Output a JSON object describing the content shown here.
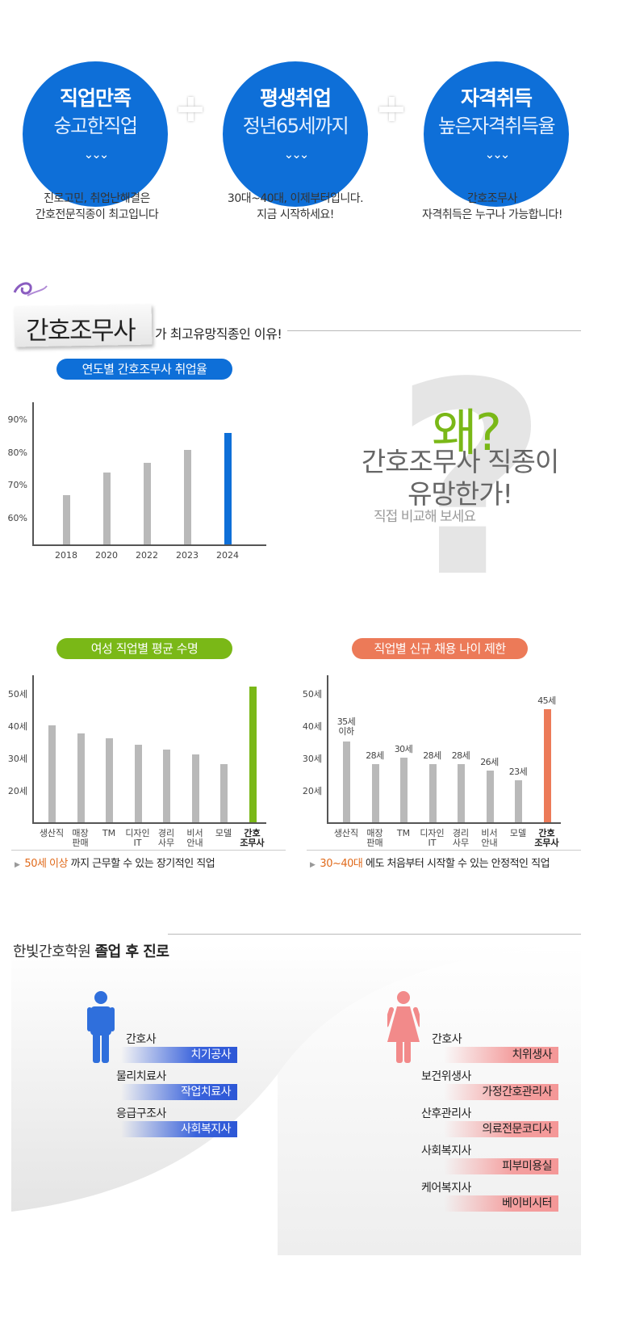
{
  "benefits": [
    {
      "title": "직업만족",
      "subtitle": "숭고한직업",
      "desc1": "진로고민, 취업난해결은",
      "desc2": "간호전문직종이 최고입니다"
    },
    {
      "title": "평생취업",
      "subtitle": "정년65세까지",
      "desc1": "30대~40대, 이제부터입니다.",
      "desc2": "지금 시작하세요!"
    },
    {
      "title": "자격취득",
      "subtitle": "높은자격취득율",
      "desc1": "간호조무사",
      "desc2": "자격취득은 누구나 가능합니다!"
    }
  ],
  "section1": {
    "tag": "간호조무사",
    "subtitle": "가 최고유망직종인 이유!"
  },
  "question": {
    "wae": "왜?",
    "line1": "간호조무사 직종이",
    "line2": "유망한가!",
    "line3": "직접 비교해 보세요"
  },
  "chart_data": [
    {
      "type": "bar",
      "title": "연도별 간호조무사 취업율",
      "categories": [
        "2018",
        "2020",
        "2022",
        "2023",
        "2024"
      ],
      "values": [
        67,
        74,
        77,
        81,
        86
      ],
      "y_ticks": [
        "60%",
        "70%",
        "80%",
        "90%"
      ],
      "ylim": [
        52,
        94
      ],
      "highlight_index": 4,
      "highlight_color": "#0e6fd8",
      "bar_color": "#b9b9b9"
    },
    {
      "type": "bar",
      "title": "여성 직업별 평균 수명",
      "categories": [
        "생산직",
        "매장\n판매",
        "TM",
        "디자인\nIT",
        "경리\n사무",
        "비서\n안내",
        "모델",
        "간호\n조무사"
      ],
      "values": [
        40,
        37.5,
        36,
        34,
        32.5,
        31,
        28,
        52
      ],
      "y_ticks": [
        "20세",
        "30세",
        "40세",
        "50세"
      ],
      "ylim": [
        10,
        54
      ],
      "highlight_index": 7,
      "highlight_color": "#7ab817",
      "bar_color": "#b9b9b9"
    },
    {
      "type": "bar",
      "title": "직업별 신규 채용 나이 제한",
      "categories": [
        "생산직",
        "매장\n판매",
        "TM",
        "디자인\nIT",
        "경리\n사무",
        "비서\n안내",
        "모델",
        "간호\n조무사"
      ],
      "values": [
        35,
        28,
        30,
        28,
        28,
        26,
        23,
        45
      ],
      "value_labels": [
        "35세\n이하",
        "28세",
        "30세",
        "28세",
        "28세",
        "26세",
        "23세",
        "45세"
      ],
      "y_ticks": [
        "20세",
        "30세",
        "40세",
        "50세"
      ],
      "ylim": [
        10,
        54
      ],
      "highlight_index": 7,
      "highlight_color": "#ec7a58",
      "bar_color": "#b9b9b9"
    }
  ],
  "pill_colors": {
    "chart1": "#0e6fd8",
    "chart2": "#7ab817",
    "chart3": "#ec7a58"
  },
  "notes": {
    "left_highlight": "50세 이상",
    "left_rest": "까지 근무할 수 있는 장기적인 직업",
    "right_highlight": "30~40대",
    "right_rest": "에도 처음부터 시작할 수 있는 안정적인 직업"
  },
  "section3": {
    "title_pre": "한빛간호학원",
    "title_bold": "졸업 후 진로"
  },
  "careers_male": {
    "plain": [
      "간호사",
      "물리치료사",
      "응급구조사"
    ],
    "highlighted": [
      "치기공사",
      "작업치료사",
      "사회복지사"
    ]
  },
  "careers_female": {
    "plain": [
      "간호사",
      "보건위생사",
      "산후관리사",
      "사회복지사",
      "케어복지사"
    ],
    "highlighted": [
      "치위생사",
      "가정간호관리사",
      "의료전문코디사",
      "피부미용실",
      "베이비시터"
    ]
  }
}
